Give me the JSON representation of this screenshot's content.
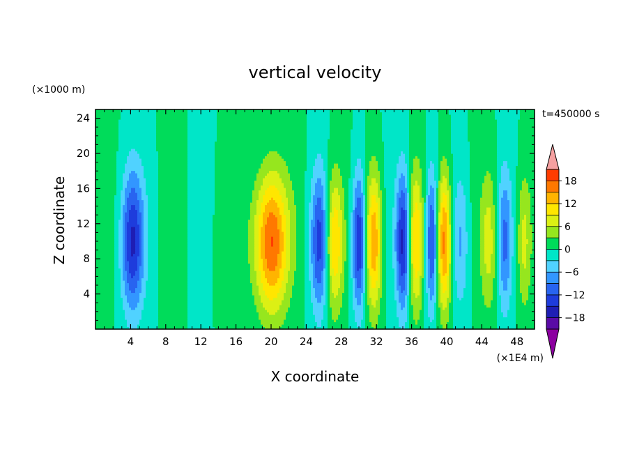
{
  "chart_data": {
    "type": "heatmap",
    "title": "vertical velocity",
    "xlabel": "X coordinate",
    "ylabel": "Z coordinate",
    "x_unit_label": "(×1E4 m)",
    "y_unit_label": "(×1000 m)",
    "time_label": "t=450000 s",
    "xlim": [
      0,
      50
    ],
    "ylim": [
      0,
      25
    ],
    "x_ticks": [
      4,
      8,
      12,
      16,
      20,
      24,
      28,
      32,
      36,
      40,
      44,
      48
    ],
    "y_ticks": [
      4,
      8,
      12,
      16,
      20,
      24
    ],
    "colorbar": {
      "levels": [
        -21,
        -18,
        -15,
        -12,
        -9,
        -6,
        -3,
        0,
        3,
        6,
        9,
        12,
        15,
        18,
        21
      ],
      "tick_labels": [
        "18",
        "12",
        "6",
        "0",
        "−6",
        "−12",
        "−18"
      ],
      "tick_values": [
        18,
        12,
        6,
        0,
        -6,
        -12,
        -18
      ],
      "colors": [
        "#5a0aa6",
        "#1e1eb4",
        "#1e3cdc",
        "#2864f0",
        "#3296ff",
        "#50d2ff",
        "#00e6c8",
        "#00dc5a",
        "#96e61e",
        "#dcf014",
        "#ffe600",
        "#ffb400",
        "#ff7800",
        "#ff3c00",
        "#e61414"
      ],
      "over_color": "#f5a0a0",
      "under_color": "#8c00a0"
    },
    "features": [
      {
        "x": 4.2,
        "amplitude": -15,
        "width": 1.3
      },
      {
        "x": 14.5,
        "amplitude": 2,
        "width": 1.0
      },
      {
        "x": 20.0,
        "amplitude": 19,
        "width": 1.9
      },
      {
        "x": 25.6,
        "amplitude": -14,
        "width": 1.1
      },
      {
        "x": 27.1,
        "amplitude": 14,
        "width": 1.1
      },
      {
        "x": 30.0,
        "amplitude": -16,
        "width": 0.8
      },
      {
        "x": 31.7,
        "amplitude": 15,
        "width": 0.9
      },
      {
        "x": 35.0,
        "amplitude": -16,
        "width": 0.8
      },
      {
        "x": 36.5,
        "amplitude": 11,
        "width": 0.8
      },
      {
        "x": 38.3,
        "amplitude": -13,
        "width": 0.7
      },
      {
        "x": 39.7,
        "amplitude": 17,
        "width": 0.8
      },
      {
        "x": 41.6,
        "amplitude": -6,
        "width": 0.9
      },
      {
        "x": 44.8,
        "amplitude": 7,
        "width": 0.9
      },
      {
        "x": 46.6,
        "amplitude": -9,
        "width": 0.8
      },
      {
        "x": 48.8,
        "amplitude": 7,
        "width": 0.8
      }
    ]
  }
}
